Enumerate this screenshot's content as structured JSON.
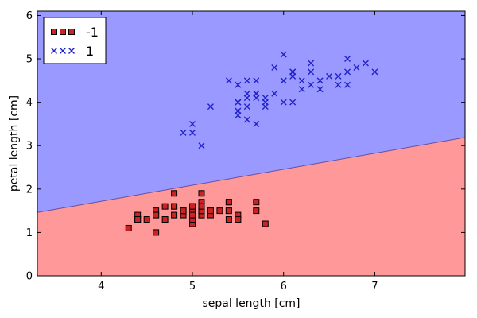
{
  "chart_data": {
    "type": "scatter",
    "xlabel": "sepal length [cm]",
    "ylabel": "petal length [cm]",
    "xlim": [
      3.3,
      7.99
    ],
    "ylim": [
      0,
      6.1
    ],
    "xticks": [
      4,
      5,
      6,
      7
    ],
    "yticks": [
      0,
      1,
      2,
      3,
      4,
      5,
      6
    ],
    "grid": false,
    "legend_position": "top-left",
    "decision_boundary": {
      "points": [
        [
          3.3,
          1.46
        ],
        [
          7.99,
          3.19
        ]
      ],
      "below_color": "#ff9999",
      "above_color": "#9999ff"
    },
    "series": [
      {
        "name": "-1",
        "marker": "square",
        "color": "#cc2222",
        "points": [
          [
            5.1,
            1.4
          ],
          [
            4.9,
            1.4
          ],
          [
            4.7,
            1.3
          ],
          [
            4.6,
            1.5
          ],
          [
            5.0,
            1.4
          ],
          [
            5.4,
            1.7
          ],
          [
            4.6,
            1.4
          ],
          [
            5.0,
            1.5
          ],
          [
            4.4,
            1.4
          ],
          [
            4.9,
            1.5
          ],
          [
            5.4,
            1.5
          ],
          [
            4.8,
            1.6
          ],
          [
            4.8,
            1.4
          ],
          [
            4.3,
            1.1
          ],
          [
            5.8,
            1.2
          ],
          [
            5.7,
            1.5
          ],
          [
            5.4,
            1.3
          ],
          [
            5.1,
            1.4
          ],
          [
            5.7,
            1.7
          ],
          [
            5.1,
            1.5
          ],
          [
            5.4,
            1.7
          ],
          [
            5.1,
            1.5
          ],
          [
            4.6,
            1.0
          ],
          [
            5.1,
            1.7
          ],
          [
            4.8,
            1.9
          ],
          [
            5.0,
            1.6
          ],
          [
            5.0,
            1.6
          ],
          [
            5.2,
            1.5
          ],
          [
            5.2,
            1.4
          ],
          [
            4.7,
            1.6
          ],
          [
            4.8,
            1.6
          ],
          [
            5.4,
            1.5
          ],
          [
            5.2,
            1.5
          ],
          [
            5.5,
            1.4
          ],
          [
            4.9,
            1.5
          ],
          [
            5.0,
            1.2
          ],
          [
            5.5,
            1.3
          ],
          [
            4.9,
            1.5
          ],
          [
            4.4,
            1.3
          ],
          [
            5.1,
            1.5
          ],
          [
            5.0,
            1.3
          ],
          [
            4.5,
            1.3
          ],
          [
            4.4,
            1.3
          ],
          [
            5.0,
            1.6
          ],
          [
            5.1,
            1.9
          ],
          [
            4.8,
            1.4
          ],
          [
            5.1,
            1.6
          ],
          [
            4.6,
            1.4
          ],
          [
            5.3,
            1.5
          ],
          [
            5.0,
            1.4
          ]
        ]
      },
      {
        "name": "1",
        "marker": "x",
        "color": "#2222cc",
        "points": [
          [
            7.0,
            4.7
          ],
          [
            6.4,
            4.5
          ],
          [
            6.9,
            4.9
          ],
          [
            5.5,
            4.0
          ],
          [
            6.5,
            4.6
          ],
          [
            5.7,
            4.5
          ],
          [
            6.3,
            4.7
          ],
          [
            4.9,
            3.3
          ],
          [
            6.6,
            4.6
          ],
          [
            5.2,
            3.9
          ],
          [
            5.0,
            3.5
          ],
          [
            5.9,
            4.2
          ],
          [
            6.0,
            4.0
          ],
          [
            6.1,
            4.7
          ],
          [
            5.6,
            3.6
          ],
          [
            6.7,
            4.4
          ],
          [
            5.6,
            4.5
          ],
          [
            5.8,
            4.1
          ],
          [
            6.2,
            4.5
          ],
          [
            5.6,
            3.9
          ],
          [
            5.9,
            4.8
          ],
          [
            6.1,
            4.0
          ],
          [
            6.3,
            4.9
          ],
          [
            6.1,
            4.7
          ],
          [
            6.4,
            4.3
          ],
          [
            6.6,
            4.4
          ],
          [
            6.8,
            4.8
          ],
          [
            6.7,
            5.0
          ],
          [
            6.0,
            4.5
          ],
          [
            5.7,
            3.5
          ],
          [
            5.5,
            3.8
          ],
          [
            5.5,
            3.7
          ],
          [
            5.8,
            3.9
          ],
          [
            6.0,
            5.1
          ],
          [
            5.4,
            4.5
          ],
          [
            6.0,
            4.5
          ],
          [
            6.7,
            4.7
          ],
          [
            6.3,
            4.4
          ],
          [
            5.6,
            4.1
          ],
          [
            5.5,
            4.0
          ],
          [
            5.5,
            4.4
          ],
          [
            6.1,
            4.6
          ],
          [
            5.8,
            4.0
          ],
          [
            5.0,
            3.3
          ],
          [
            5.6,
            4.2
          ],
          [
            5.7,
            4.2
          ],
          [
            5.7,
            4.2
          ],
          [
            6.2,
            4.3
          ],
          [
            5.1,
            3.0
          ],
          [
            5.7,
            4.1
          ]
        ]
      }
    ]
  }
}
